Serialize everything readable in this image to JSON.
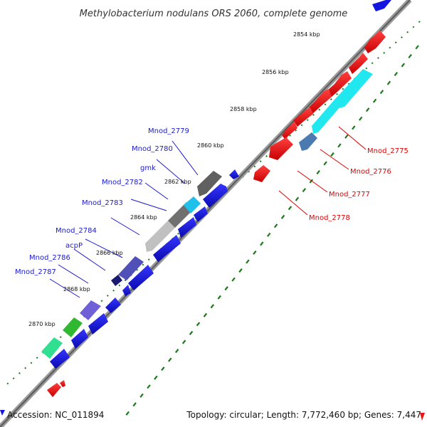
{
  "title": "Methylobacterium nodulans ORS 2060, complete genome",
  "accession": "Accession: NC_011894",
  "summary": "Topology: circular; Length: 7,772,460 bp; Genes: 7,447",
  "colors": {
    "backbone": "#808080",
    "forward_cds": "#1515e0",
    "reverse_cds": "#ea1515",
    "tick_green": "#1a7a1a",
    "label_forward": "#1a1ad0",
    "label_reverse": "#e00000"
  },
  "bp_labels": [
    "2854 kbp",
    "2856 kbp",
    "2858 kbp",
    "2860 kbp",
    "2862 kbp",
    "2864 kbp",
    "2866 kbp",
    "2868 kbp",
    "2870 kbp"
  ],
  "forward_gene_labels": [
    "Mnod_2779",
    "Mnod_2780",
    "gmk",
    "Mnod_2782",
    "Mnod_2783",
    "Mnod_2784",
    "acpP",
    "Mnod_2786",
    "Mnod_2787"
  ],
  "reverse_gene_labels": [
    "Mnod_2775",
    "Mnod_2776",
    "Mnod_2777",
    "Mnod_2778"
  ],
  "icons": {
    "legend_marker": "blue-triangle-icon"
  }
}
